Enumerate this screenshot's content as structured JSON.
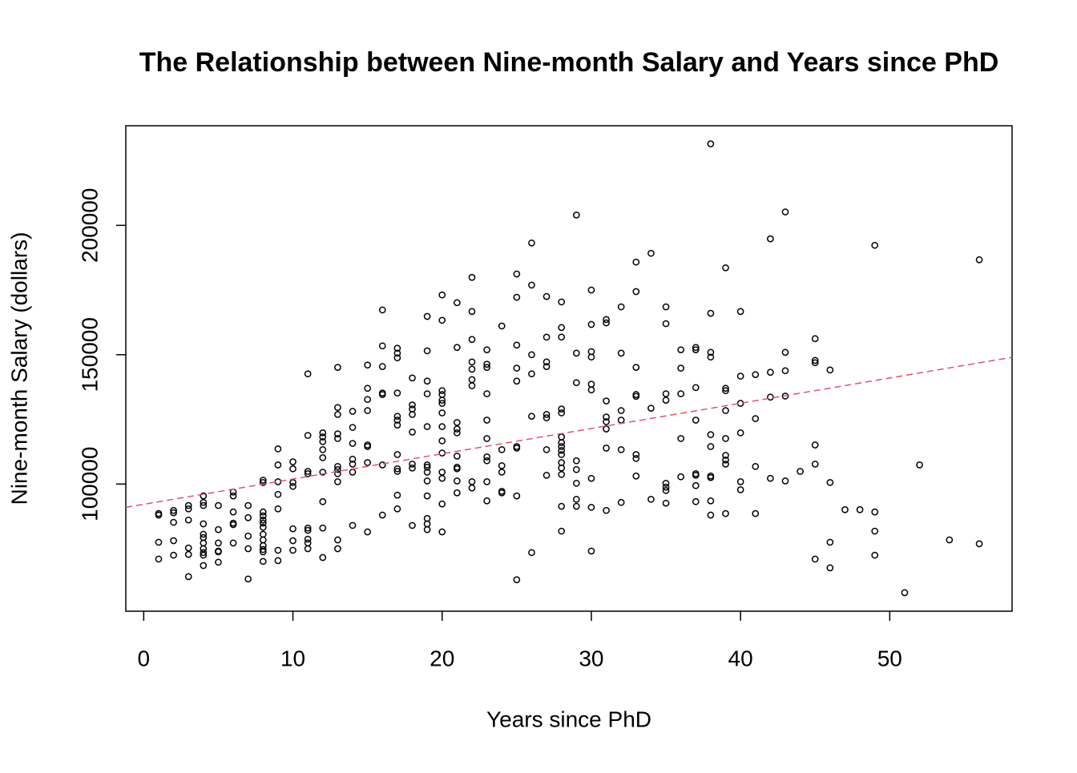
{
  "chart_data": {
    "type": "scatter",
    "title": "The Relationship between Nine-month Salary and Years since PhD",
    "x_label": "Years since PhD",
    "y_label": "Nine-month Salary (dollars)",
    "xlim": [
      -1.2,
      58.2
    ],
    "ylim": [
      50850,
      238500
    ],
    "xticks": [
      0,
      10,
      20,
      30,
      40,
      50
    ],
    "yticks": [
      100000,
      150000,
      200000
    ],
    "series": [
      {
        "color": "#000000",
        "x": [
          1,
          1,
          1,
          1,
          2,
          2,
          2,
          2,
          2,
          3,
          3,
          3,
          3,
          3,
          3,
          4,
          4,
          4,
          4,
          4,
          4,
          4,
          4,
          4,
          4,
          4,
          5,
          5,
          5,
          5,
          5,
          5,
          6,
          6,
          6,
          6,
          6,
          6,
          7,
          7,
          7,
          7,
          7,
          8,
          8,
          8,
          8,
          8,
          8,
          8,
          8,
          8,
          8,
          8,
          8,
          8,
          9,
          9,
          9,
          9,
          9,
          9,
          9,
          10,
          10,
          10,
          10,
          10,
          10,
          10,
          11,
          11,
          11,
          11,
          11,
          11,
          11,
          11,
          11,
          12,
          12,
          12,
          12,
          12,
          12,
          12,
          12,
          12,
          13,
          13,
          13,
          13,
          13,
          13,
          13,
          13,
          13,
          13,
          13,
          14,
          14,
          14,
          14,
          14,
          14,
          14,
          15,
          15,
          15,
          15,
          15,
          15,
          15,
          15,
          16,
          16,
          16,
          16,
          16,
          16,
          16,
          17,
          17,
          17,
          17,
          17,
          17,
          17,
          17,
          17,
          17,
          17,
          17,
          18,
          18,
          18,
          18,
          18,
          18,
          18,
          18,
          19,
          19,
          19,
          19,
          19,
          19,
          19,
          19,
          19,
          19,
          19,
          19,
          19,
          20,
          20,
          20,
          20,
          20,
          20,
          20,
          20,
          20,
          20,
          20,
          20,
          20,
          20,
          21,
          21,
          21,
          21,
          21,
          21,
          21,
          21,
          21,
          21,
          22,
          22,
          22,
          22,
          22,
          22,
          22,
          22,
          22,
          23,
          23,
          23,
          23,
          23,
          23,
          23,
          23,
          23,
          23,
          24,
          24,
          24,
          24,
          24,
          24,
          25,
          25,
          25,
          25,
          25,
          25,
          25,
          25,
          25,
          26,
          26,
          26,
          26,
          26,
          26,
          27,
          27,
          27,
          27,
          27,
          27,
          27,
          27,
          28,
          28,
          28,
          28,
          28,
          28,
          28,
          28,
          28,
          28,
          28,
          28,
          28,
          28,
          28,
          29,
          29,
          29,
          29,
          29,
          29,
          29,
          29,
          30,
          30,
          30,
          30,
          30,
          30,
          30,
          30,
          30,
          31,
          31,
          31,
          31,
          31,
          31,
          31,
          31,
          32,
          32,
          32,
          32,
          32,
          32,
          33,
          33,
          33,
          33,
          33,
          33,
          33,
          33,
          34,
          34,
          34,
          35,
          35,
          35,
          35,
          35,
          35,
          35,
          35,
          36,
          36,
          36,
          36,
          36,
          37,
          37,
          37,
          37,
          37,
          37,
          37,
          37,
          38,
          38,
          38,
          38,
          38,
          38,
          38,
          38,
          38,
          38,
          39,
          39,
          39,
          39,
          39,
          39,
          39,
          39,
          39,
          40,
          40,
          40,
          40,
          40,
          40,
          41,
          41,
          41,
          41,
          42,
          42,
          42,
          42,
          43,
          43,
          43,
          43,
          43,
          44,
          45,
          45,
          45,
          45,
          45,
          45,
          46,
          46,
          46,
          46,
          47,
          48,
          49,
          49,
          49,
          49,
          51,
          52,
          54,
          56,
          56
        ],
        "y": [
          88600,
          88000,
          77500,
          71000,
          89800,
          88900,
          85200,
          78100,
          72500,
          91700,
          90400,
          86100,
          75300,
          72800,
          64200,
          95400,
          92900,
          91700,
          84600,
          80600,
          79300,
          77200,
          75000,
          73500,
          72500,
          68500,
          91700,
          82400,
          77200,
          74100,
          73800,
          69800,
          96900,
          95400,
          89200,
          84900,
          84300,
          77200,
          91700,
          87000,
          79900,
          75000,
          63300,
          101500,
          100600,
          89200,
          87700,
          86100,
          84900,
          83300,
          80600,
          78400,
          76200,
          74700,
          73800,
          70100,
          113600,
          107400,
          100900,
          96000,
          90400,
          74400,
          70400,
          108600,
          105900,
          100600,
          99100,
          82700,
          78100,
          74400,
          142600,
          118800,
          104900,
          104000,
          83000,
          82100,
          78700,
          77200,
          75000,
          119800,
          118200,
          116400,
          113300,
          110200,
          104600,
          93200,
          83000,
          71600,
          145100,
          129600,
          126900,
          119400,
          117600,
          106800,
          105600,
          104000,
          100900,
          78400,
          75000,
          128100,
          121900,
          115700,
          109600,
          107700,
          104600,
          84000,
          146000,
          137000,
          132700,
          128400,
          115100,
          114500,
          108300,
          81500,
          167300,
          153400,
          145400,
          135200,
          134600,
          107400,
          88000,
          152500,
          150600,
          148800,
          135200,
          126200,
          124700,
          122800,
          111400,
          105900,
          104900,
          95700,
          90400,
          141000,
          130600,
          129000,
          126900,
          120100,
          107700,
          106200,
          84000,
          164800,
          151500,
          139800,
          134900,
          122200,
          107400,
          106500,
          104600,
          101200,
          95400,
          86700,
          84600,
          82400,
          173100,
          163300,
          136100,
          134600,
          132400,
          131200,
          127500,
          122200,
          116700,
          112000,
          104600,
          102200,
          92300,
          81500,
          170100,
          152800,
          123800,
          121300,
          119800,
          110800,
          106500,
          105900,
          101200,
          96600,
          179900,
          166700,
          155900,
          147200,
          144400,
          140400,
          138000,
          100900,
          98500,
          151900,
          146300,
          145100,
          134900,
          124700,
          117600,
          110500,
          109000,
          100900,
          93500,
          161100,
          113300,
          107100,
          104600,
          97200,
          96600,
          181200,
          172200,
          153700,
          144800,
          139800,
          114500,
          113900,
          95400,
          63000,
          193200,
          176900,
          150000,
          142600,
          126200,
          73500,
          172500,
          156800,
          147200,
          145400,
          126900,
          125600,
          113300,
          103400,
          170400,
          160500,
          156800,
          129000,
          127500,
          118200,
          116000,
          114500,
          113000,
          111400,
          108300,
          106200,
          103700,
          91400,
          81800,
          204000,
          150600,
          139200,
          109000,
          105600,
          100300,
          94100,
          91400,
          175000,
          161700,
          151200,
          149100,
          138600,
          136400,
          102200,
          91000,
          74100,
          163600,
          162300,
          132100,
          125900,
          124100,
          121300,
          113900,
          89800,
          168500,
          150600,
          128400,
          124700,
          113300,
          92900,
          185800,
          174400,
          145100,
          134600,
          133900,
          111400,
          109900,
          103100,
          189200,
          129300,
          94100,
          168500,
          162000,
          134900,
          132400,
          100300,
          98800,
          97500,
          92600,
          151900,
          144800,
          134900,
          117600,
          102800,
          152800,
          151900,
          137300,
          124700,
          104000,
          103400,
          99400,
          93200,
          231500,
          166000,
          150900,
          149100,
          119100,
          114500,
          103100,
          102500,
          93500,
          88000,
          183600,
          137000,
          136100,
          128400,
          117600,
          111100,
          109300,
          107700,
          88600,
          166700,
          141700,
          131200,
          119800,
          100900,
          97800,
          142300,
          125300,
          106800,
          88600,
          194800,
          143200,
          133600,
          102200,
          205200,
          150900,
          143800,
          134000,
          101200,
          104900,
          156200,
          147800,
          146900,
          115100,
          107700,
          71000,
          144100,
          100600,
          77500,
          67600,
          90100,
          90100,
          192300,
          89200,
          81800,
          72500,
          58000,
          107400,
          78400,
          186700,
          76900
        ]
      }
    ],
    "fit_line": {
      "color": "#DF536B",
      "dash": true,
      "x": [
        -1.2,
        58.2
      ],
      "y": [
        91000,
        149000
      ]
    }
  }
}
